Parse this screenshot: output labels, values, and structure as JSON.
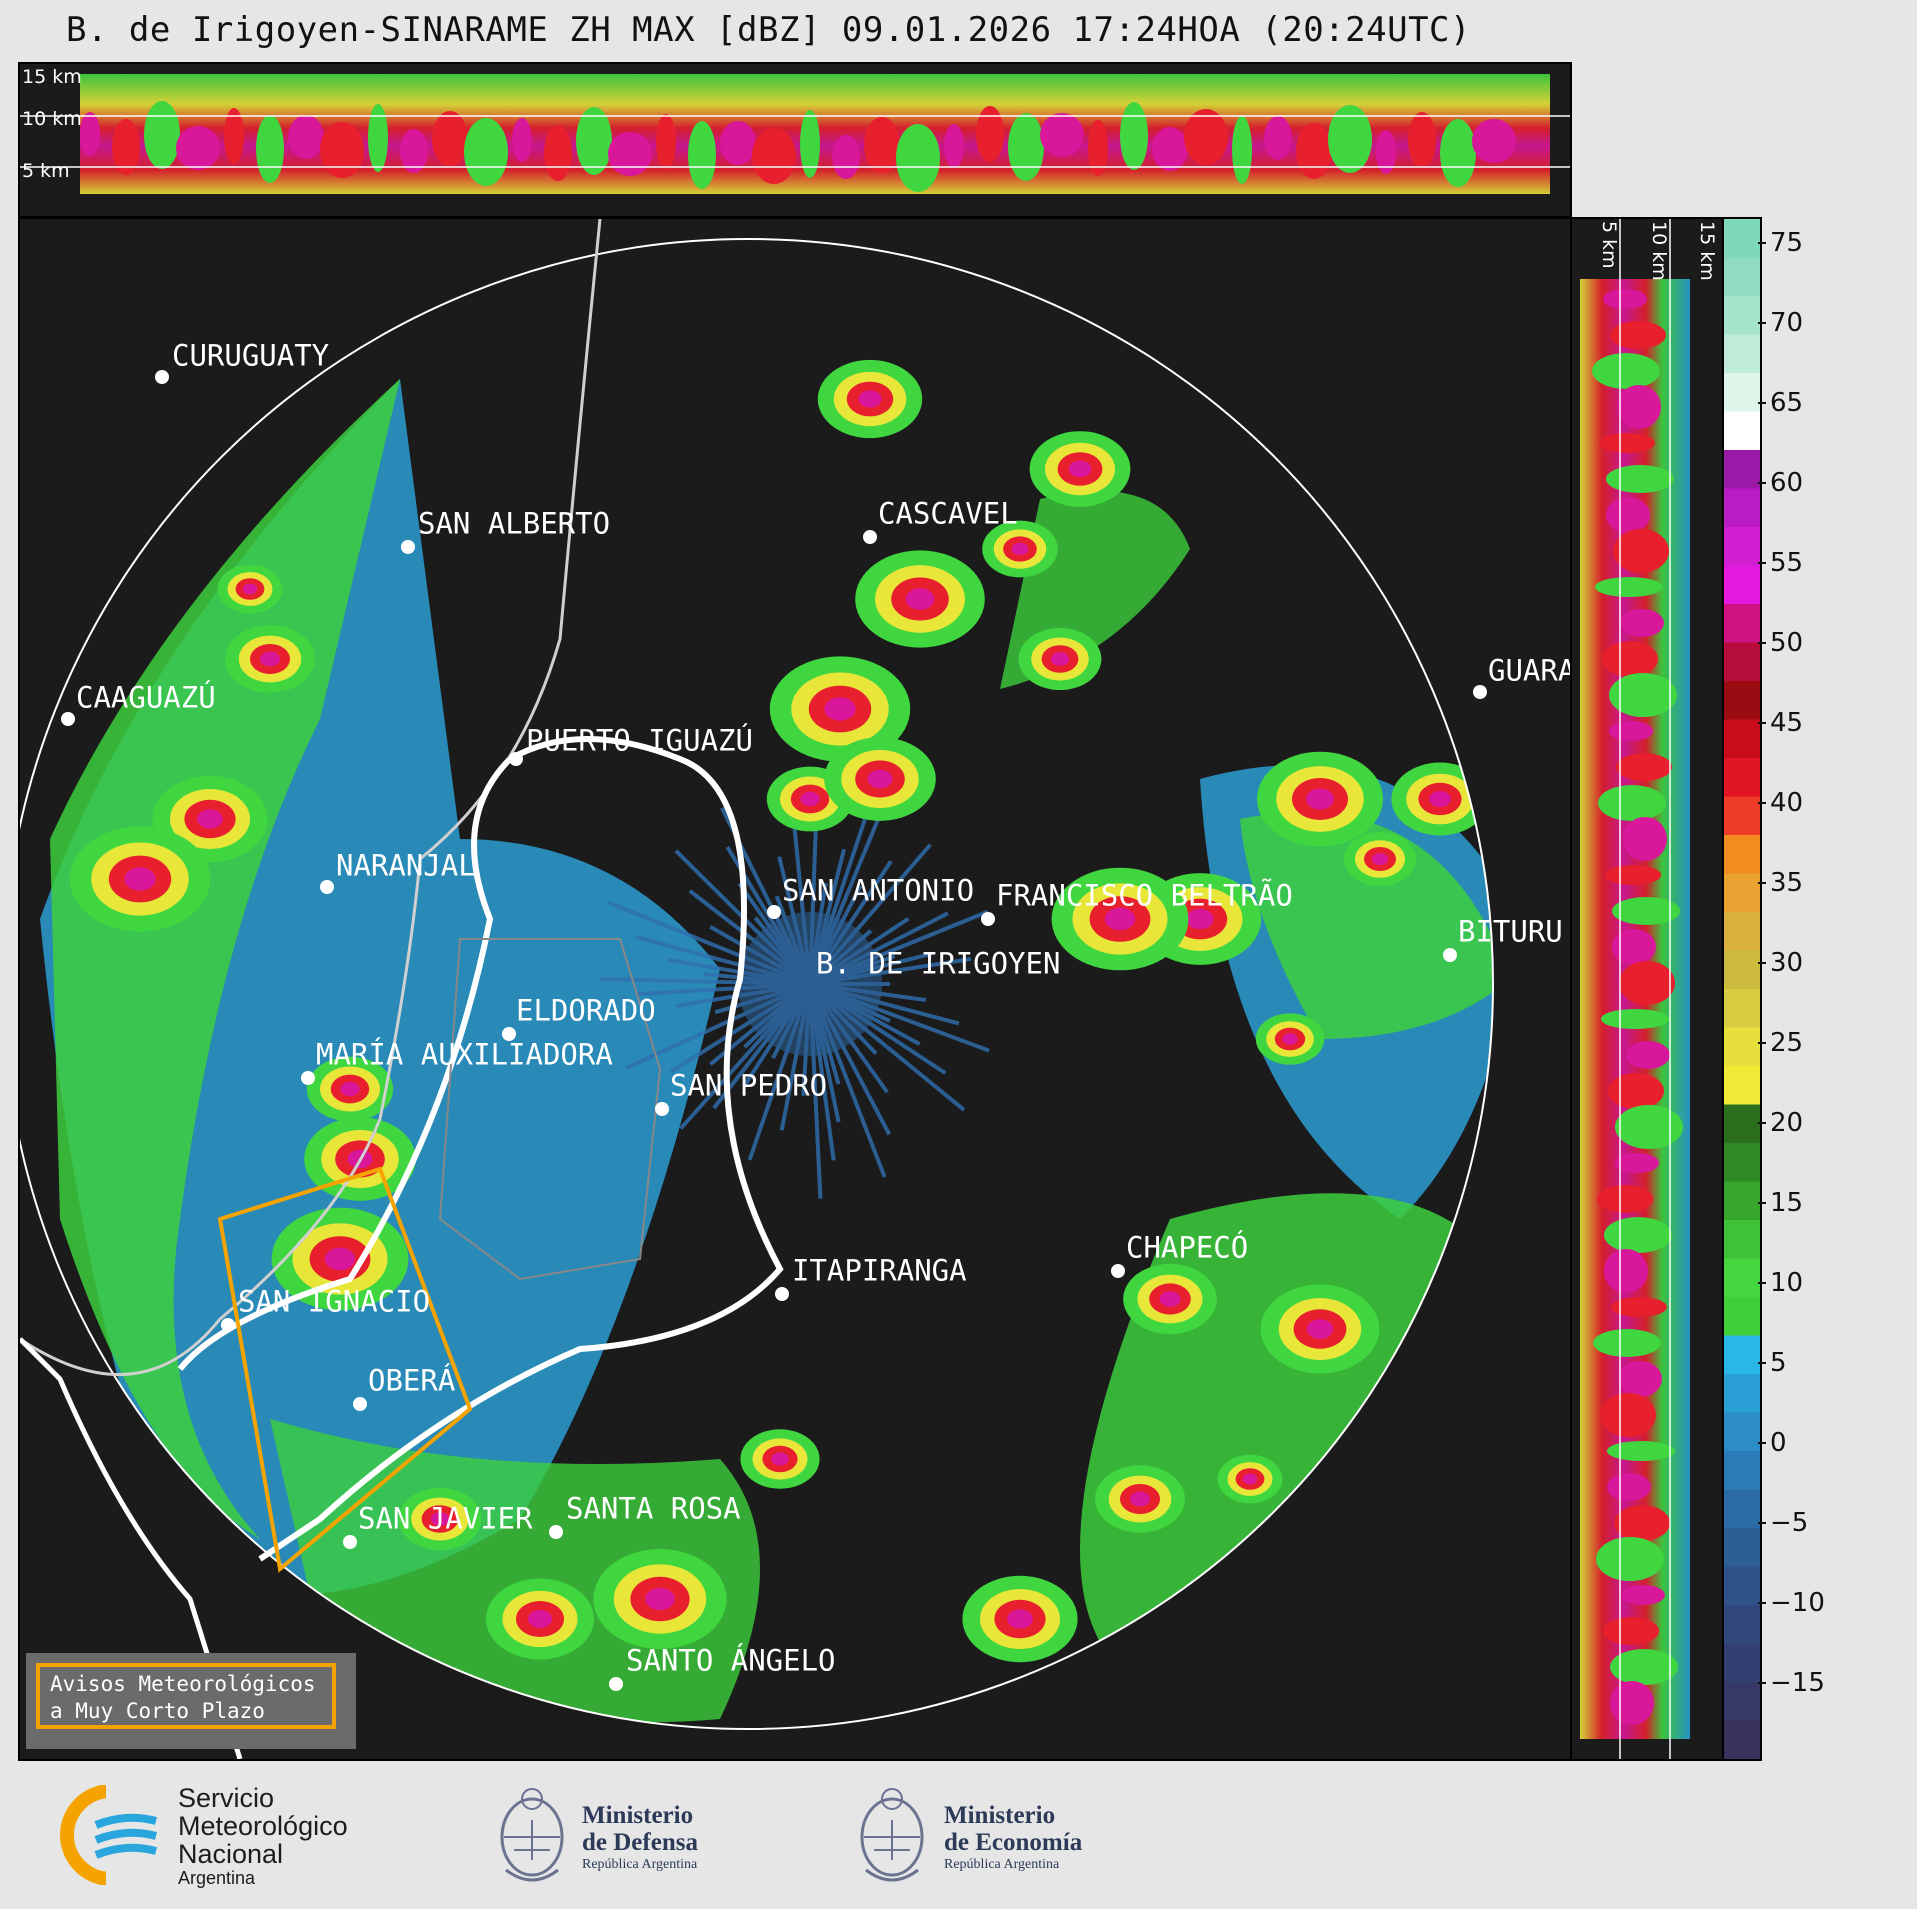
{
  "title": "B. de Irigoyen-SINARAME ZH MAX [dBZ] 09.01.2026 17:24HOA (20:24UTC)",
  "altitude_labels": [
    "15 km",
    "10 km",
    "5 km"
  ],
  "cities": [
    {
      "name": "CURUGUATY"
    },
    {
      "name": "SAN ALBERTO"
    },
    {
      "name": "CASCAVEL"
    },
    {
      "name": "CAAGUAZÚ"
    },
    {
      "name": "GUARA"
    },
    {
      "name": "PUERTO IGUAZÚ"
    },
    {
      "name": "NARANJAL"
    },
    {
      "name": "SAN ANTONIO"
    },
    {
      "name": "FRANCISCO BELTRÃO"
    },
    {
      "name": "BITURU"
    },
    {
      "name": "B. DE IRIGOYEN"
    },
    {
      "name": "ELDORADO"
    },
    {
      "name": "MARÍA AUXILIADORA"
    },
    {
      "name": "SAN PEDRO"
    },
    {
      "name": "CHAPECÓ"
    },
    {
      "name": "ITAPIRANGA"
    },
    {
      "name": "SAN IGNACIO"
    },
    {
      "name": "OBERÁ"
    },
    {
      "name": "SAN JAVIER"
    },
    {
      "name": "SANTA ROSA"
    },
    {
      "name": "SANTO ÁNGELO"
    }
  ],
  "colorbar": {
    "unit": "dBZ",
    "ticks": [
      "75",
      "70",
      "65",
      "60",
      "55",
      "50",
      "45",
      "40",
      "35",
      "30",
      "25",
      "20",
      "15",
      "10",
      "5",
      "0",
      "−5",
      "−10",
      "−15"
    ]
  },
  "avisos": {
    "line1": "Avisos Meteorológicos",
    "line2": "a Muy Corto Plazo"
  },
  "logos": {
    "smn": {
      "line1": "Servicio",
      "line2": "Meteorológico",
      "line3": "Nacional",
      "line4": "Argentina"
    },
    "defensa": {
      "line1": "Ministerio",
      "line2": "de Defensa",
      "line3": "República Argentina"
    },
    "economia": {
      "line1": "Ministerio",
      "line2": "de Economía",
      "line3": "República Argentina"
    }
  },
  "colors": {
    "background": "#e6e6e6",
    "panel": "#1b1b1b",
    "smn_blue": "#29a6de",
    "smn_orange": "#f5a300",
    "alert_orange": "#f5a300",
    "ministry_navy": "#2c3a58"
  }
}
